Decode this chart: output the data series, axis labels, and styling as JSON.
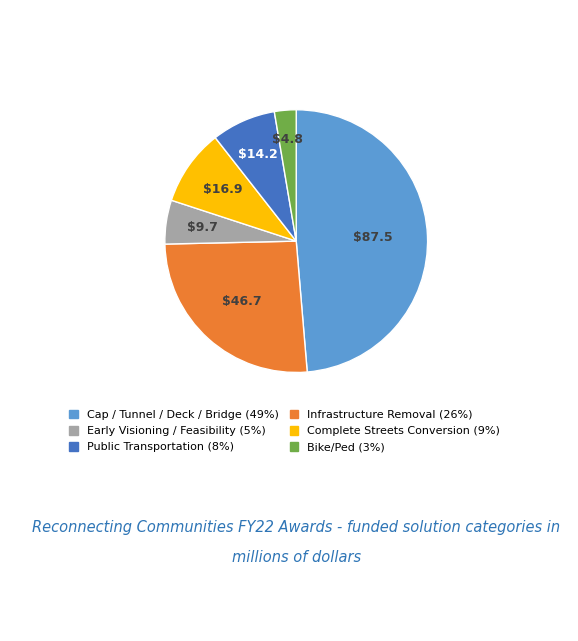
{
  "slices": [
    {
      "label": "Cap / Tunnel / Deck / Bridge (49%)",
      "value": 87.5,
      "color": "#5B9BD5",
      "label_color": "#404040"
    },
    {
      "label": "Infrastructure Removal (26%)",
      "value": 46.7,
      "color": "#ED7D31",
      "label_color": "#404040"
    },
    {
      "label": "Early Visioning / Feasibility (5%)",
      "value": 9.7,
      "color": "#A5A5A5",
      "label_color": "#404040"
    },
    {
      "label": "Complete Streets Conversion (9%)",
      "value": 16.9,
      "color": "#FFC000",
      "label_color": "#404040"
    },
    {
      "label": "Public Transportation (8%)",
      "value": 14.2,
      "color": "#4472C4",
      "label_color": "#ffffff"
    },
    {
      "label": "Bike/Ped (3%)",
      "value": 4.8,
      "color": "#70AD47",
      "label_color": "#404040"
    }
  ],
  "legend_order": [
    0,
    2,
    4,
    1,
    3,
    5
  ],
  "title_line1": "Reconnecting Communities FY22 Awards - funded solution categories in",
  "title_line2": "millions of dollars",
  "title_color": "#2E75B6",
  "title_fontsize": 10.5,
  "label_fontsize": 9,
  "legend_fontsize": 8,
  "background_color": "#FFFFFF"
}
